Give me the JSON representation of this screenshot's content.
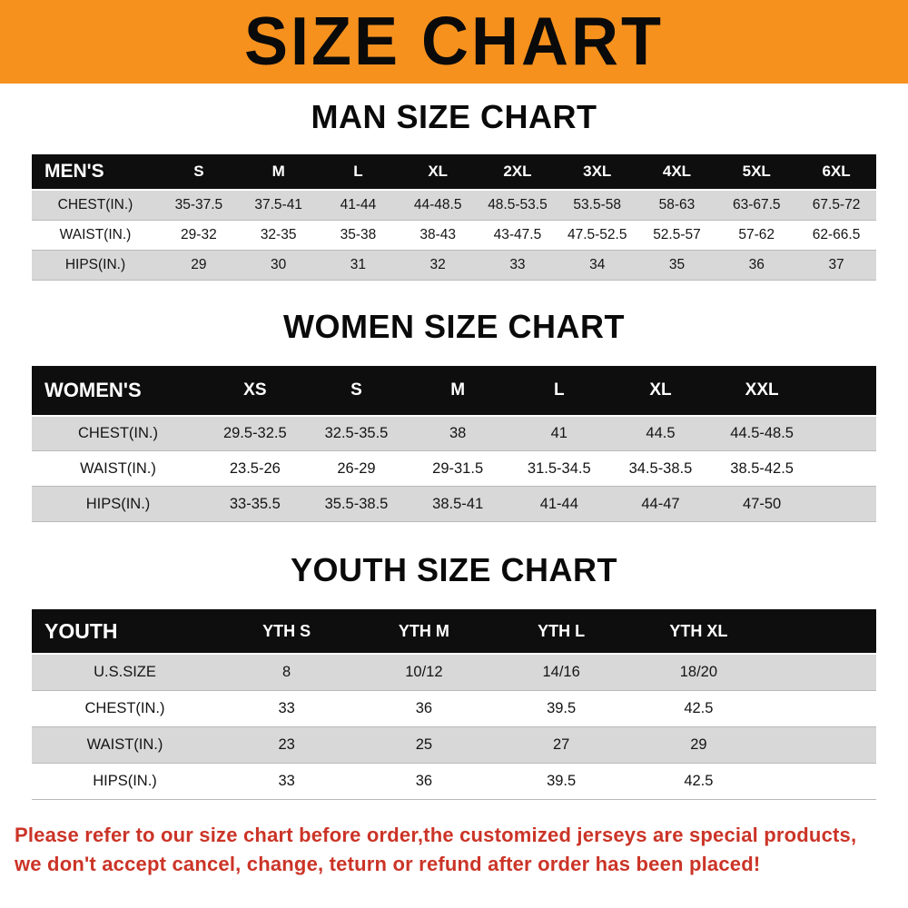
{
  "banner": {
    "title": "SIZE CHART",
    "bg_color": "#f6911e",
    "text_color": "#0a0a0a"
  },
  "sections": [
    {
      "heading": "MAN SIZE CHART",
      "table": {
        "header": [
          "MEN'S",
          "S",
          "M",
          "L",
          "XL",
          "2XL",
          "3XL",
          "4XL",
          "5XL",
          "6XL"
        ],
        "rows": [
          [
            "CHEST(IN.)",
            "35-37.5",
            "37.5-41",
            "41-44",
            "44-48.5",
            "48.5-53.5",
            "53.5-58",
            "58-63",
            "63-67.5",
            "67.5-72"
          ],
          [
            "WAIST(IN.)",
            "29-32",
            "32-35",
            "35-38",
            "38-43",
            "43-47.5",
            "47.5-52.5",
            "52.5-57",
            "57-62",
            "62-66.5"
          ],
          [
            "HIPS(IN.)",
            "29",
            "30",
            "31",
            "32",
            "33",
            "34",
            "35",
            "36",
            "37"
          ]
        ]
      }
    },
    {
      "heading": "WOMEN SIZE CHART",
      "table": {
        "header": [
          "WOMEN'S",
          "XS",
          "S",
          "M",
          "L",
          "XL",
          "XXL"
        ],
        "rows": [
          [
            "CHEST(IN.)",
            "29.5-32.5",
            "32.5-35.5",
            "38",
            "41",
            "44.5",
            "44.5-48.5"
          ],
          [
            "WAIST(IN.)",
            "23.5-26",
            "26-29",
            "29-31.5",
            "31.5-34.5",
            "34.5-38.5",
            "38.5-42.5"
          ],
          [
            "HIPS(IN.)",
            "33-35.5",
            "35.5-38.5",
            "38.5-41",
            "41-44",
            "44-47",
            "47-50"
          ]
        ]
      }
    },
    {
      "heading": "YOUTH SIZE CHART",
      "table": {
        "header": [
          "YOUTH",
          "YTH S",
          "YTH M",
          "YTH L",
          "YTH XL"
        ],
        "rows": [
          [
            "U.S.SIZE",
            "8",
            "10/12",
            "14/16",
            "18/20"
          ],
          [
            "CHEST(IN.)",
            "33",
            "36",
            "39.5",
            "42.5"
          ],
          [
            "WAIST(IN.)",
            "23",
            "25",
            "27",
            "29"
          ],
          [
            "HIPS(IN.)",
            "33",
            "36",
            "39.5",
            "42.5"
          ]
        ]
      }
    }
  ],
  "footer": {
    "line1": "Please refer to our size chart before order,the customized jerseys are special products,",
    "line2": "we don't accept cancel, change, teturn or refund after order has been placed!",
    "text_color": "#cb3427"
  }
}
